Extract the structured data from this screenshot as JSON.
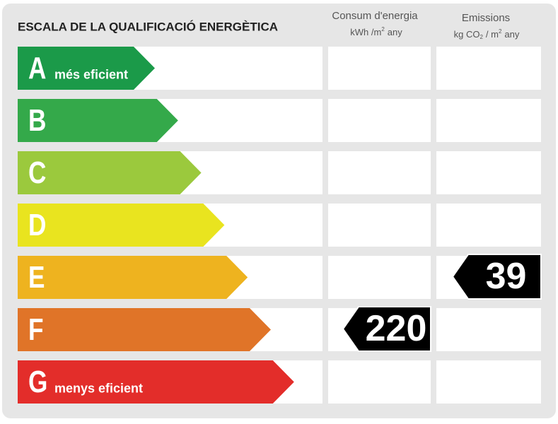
{
  "title": "ESCALA DE LA QUALIFICACIÓ ENERGÈTICA",
  "columns": {
    "consumption": {
      "title": "Consum d'energia",
      "unit": [
        "kWh /m",
        "2",
        "any"
      ]
    },
    "emissions": {
      "title": "Emissions",
      "unit": [
        "kg CO",
        "2",
        "/ m",
        "2",
        "any"
      ]
    }
  },
  "rows": [
    {
      "letter": "A",
      "label": "més eficient",
      "color": "#1b9a49"
    },
    {
      "letter": "B",
      "color": "#34a94a"
    },
    {
      "letter": "C",
      "color": "#9bc93d"
    },
    {
      "letter": "D",
      "color": "#e9e41f"
    },
    {
      "letter": "E",
      "color": "#eeb31f"
    },
    {
      "letter": "F",
      "color": "#e07428"
    },
    {
      "letter": "G",
      "label": "menys eficient",
      "color": "#e32d2a"
    }
  ],
  "results": {
    "consumption": {
      "value": 220,
      "rating": "F"
    },
    "emissions": {
      "value": 39,
      "rating": "E"
    }
  }
}
